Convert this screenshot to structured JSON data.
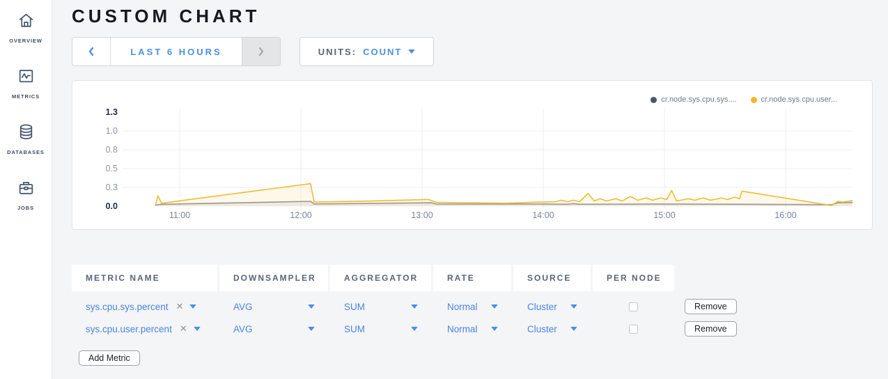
{
  "sidebar": {
    "items": [
      {
        "label": "OVERVIEW",
        "icon": "home-icon"
      },
      {
        "label": "METRICS",
        "icon": "metrics-icon"
      },
      {
        "label": "DATABASES",
        "icon": "database-icon"
      },
      {
        "label": "JOBS",
        "icon": "briefcase-icon"
      }
    ]
  },
  "header": {
    "title": "CUSTOM CHART"
  },
  "controls": {
    "time_range": {
      "value": "LAST 6 HOURS"
    },
    "units": {
      "label": "UNITS:",
      "value": "COUNT"
    }
  },
  "chart_data": {
    "type": "line",
    "title": "",
    "xlabel": "",
    "ylabel": "",
    "grid": true,
    "legend_position": "top-right",
    "x_ticks": [
      "11:00",
      "12:00",
      "13:00",
      "14:00",
      "15:00",
      "16:00"
    ],
    "x_tick_hours": [
      11,
      12,
      13,
      14,
      15,
      16
    ],
    "ylim": [
      0,
      1.25
    ],
    "y_ticks": [
      {
        "label": "0.0",
        "value": 0,
        "strong": true,
        "grid": false
      },
      {
        "label": "0.3",
        "value": 0.25,
        "strong": false,
        "grid": true
      },
      {
        "label": "0.5",
        "value": 0.5,
        "strong": false,
        "grid": true
      },
      {
        "label": "0.8",
        "value": 0.75,
        "strong": false,
        "grid": true
      },
      {
        "label": "1.0",
        "value": 1.0,
        "strong": false,
        "grid": true
      },
      {
        "label": "1.3",
        "value": 1.25,
        "strong": true,
        "grid": false
      }
    ],
    "series": [
      {
        "name": "cr.node.sys.cpu.sys....",
        "legend_dot": "#4d5668",
        "color": "#8e949c",
        "fill": "rgba(142,148,156,0.14)",
        "points": [
          [
            10.8,
            0.015
          ],
          [
            10.85,
            0.025
          ],
          [
            12.08,
            0.065
          ],
          [
            12.11,
            0.03
          ],
          [
            13.08,
            0.045
          ],
          [
            13.12,
            0.028
          ],
          [
            14.0,
            0.03
          ],
          [
            14.2,
            0.026
          ],
          [
            14.25,
            0.034
          ],
          [
            14.3,
            0.026
          ],
          [
            15.0,
            0.03
          ],
          [
            15.6,
            0.026
          ],
          [
            16.38,
            0.02
          ],
          [
            16.43,
            0.045
          ],
          [
            16.55,
            0.05
          ]
        ]
      },
      {
        "name": "cr.node.sys.cpu.user...",
        "legend_dot": "#f2b824",
        "color": "#efbb33",
        "fill": "rgba(242,189,45,0.10)",
        "points": [
          [
            10.8,
            0.02
          ],
          [
            10.82,
            0.14
          ],
          [
            10.85,
            0.04
          ],
          [
            12.08,
            0.3
          ],
          [
            12.11,
            0.055
          ],
          [
            12.6,
            0.07
          ],
          [
            13.05,
            0.09
          ],
          [
            13.12,
            0.05
          ],
          [
            13.7,
            0.04
          ],
          [
            13.95,
            0.055
          ],
          [
            14.1,
            0.06
          ],
          [
            14.15,
            0.08
          ],
          [
            14.2,
            0.06
          ],
          [
            14.25,
            0.08
          ],
          [
            14.3,
            0.06
          ],
          [
            14.37,
            0.17
          ],
          [
            14.42,
            0.07
          ],
          [
            14.47,
            0.1
          ],
          [
            14.52,
            0.07
          ],
          [
            14.6,
            0.1
          ],
          [
            14.65,
            0.07
          ],
          [
            14.72,
            0.13
          ],
          [
            14.78,
            0.08
          ],
          [
            14.85,
            0.11
          ],
          [
            14.9,
            0.08
          ],
          [
            14.97,
            0.11
          ],
          [
            15.02,
            0.09
          ],
          [
            15.06,
            0.21
          ],
          [
            15.1,
            0.07
          ],
          [
            15.2,
            0.1
          ],
          [
            15.25,
            0.08
          ],
          [
            15.32,
            0.11
          ],
          [
            15.38,
            0.08
          ],
          [
            15.47,
            0.11
          ],
          [
            15.52,
            0.09
          ],
          [
            15.58,
            0.12
          ],
          [
            15.62,
            0.1
          ],
          [
            15.64,
            0.2
          ],
          [
            16.38,
            0.01
          ],
          [
            16.43,
            0.065
          ],
          [
            16.47,
            0.055
          ],
          [
            16.51,
            0.065
          ],
          [
            16.55,
            0.075
          ]
        ]
      }
    ]
  },
  "metrics_table": {
    "columns": [
      "METRIC NAME",
      "DOWNSAMPLER",
      "AGGREGATOR",
      "RATE",
      "SOURCE",
      "PER NODE"
    ],
    "rows": [
      {
        "name": "sys.cpu.sys.percent",
        "close": "✕",
        "downsampler": "AVG",
        "aggregator": "SUM",
        "rate": "Normal",
        "source": "Cluster",
        "per_node_checked": false,
        "remove_label": "Remove"
      },
      {
        "name": "sys.cpu.user.percent",
        "close": "✕",
        "downsampler": "AVG",
        "aggregator": "SUM",
        "rate": "Normal",
        "source": "Cluster",
        "per_node_checked": false,
        "remove_label": "Remove"
      }
    ],
    "add_button_label": "Add Metric"
  },
  "colors": {
    "accent_blue": "#4a90e2",
    "grid_line": "#ececf0",
    "tick_label": "#7c8698",
    "tick_label_strong": "#1f2c49"
  }
}
